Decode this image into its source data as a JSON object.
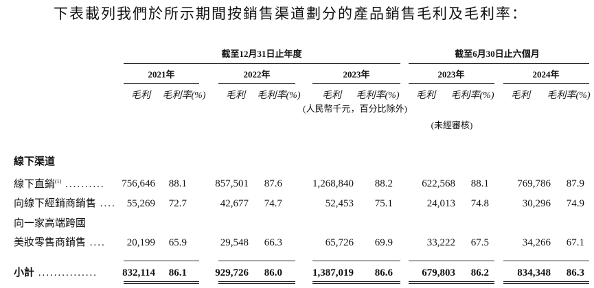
{
  "intro": "下表載列我們於所示期間按銷售渠道劃分的產品銷售毛利及毛利率：",
  "header": {
    "groups": [
      "截至12月31日止年度",
      "截至6月30日止六個月"
    ],
    "years": [
      "2021年",
      "2022年",
      "2023年",
      "2023年",
      "2024年"
    ],
    "columns": [
      "毛利",
      "毛利率(%)",
      "毛利",
      "毛利率(%)",
      "毛利",
      "毛利率(%)",
      "毛利",
      "毛利率(%)",
      "毛利",
      "毛利率(%)"
    ],
    "unit_note": "(人民幣千元，百分比除外)",
    "audit_note": "(未經審核)"
  },
  "section": "線下渠道",
  "rows": [
    {
      "label": "線下直銷",
      "footnote": "(1)",
      "leader": "..........",
      "values": [
        "756,646",
        "88.1",
        "857,501",
        "87.6",
        "1,268,840",
        "88.2",
        "622,568",
        "88.1",
        "769,786",
        "87.9"
      ]
    },
    {
      "label": "向線下經銷商銷售",
      "leader": "....",
      "values": [
        "55,269",
        "72.7",
        "42,677",
        "74.7",
        "52,453",
        "75.1",
        "24,013",
        "74.8",
        "30,296",
        "74.9"
      ]
    },
    {
      "label": "向一家高端跨國"
    },
    {
      "label": "美妝零售商銷售",
      "leader": "....",
      "values": [
        "20,199",
        "65.9",
        "29,548",
        "66.3",
        "65,726",
        "69.9",
        "33,222",
        "67.5",
        "34,266",
        "67.1"
      ]
    }
  ],
  "subtotal": {
    "label": "小計",
    "leader": "...............",
    "values": [
      "832,114",
      "86.1",
      "929,726",
      "86.0",
      "1,387,019",
      "86.6",
      "679,803",
      "86.2",
      "834,348",
      "86.3"
    ]
  }
}
